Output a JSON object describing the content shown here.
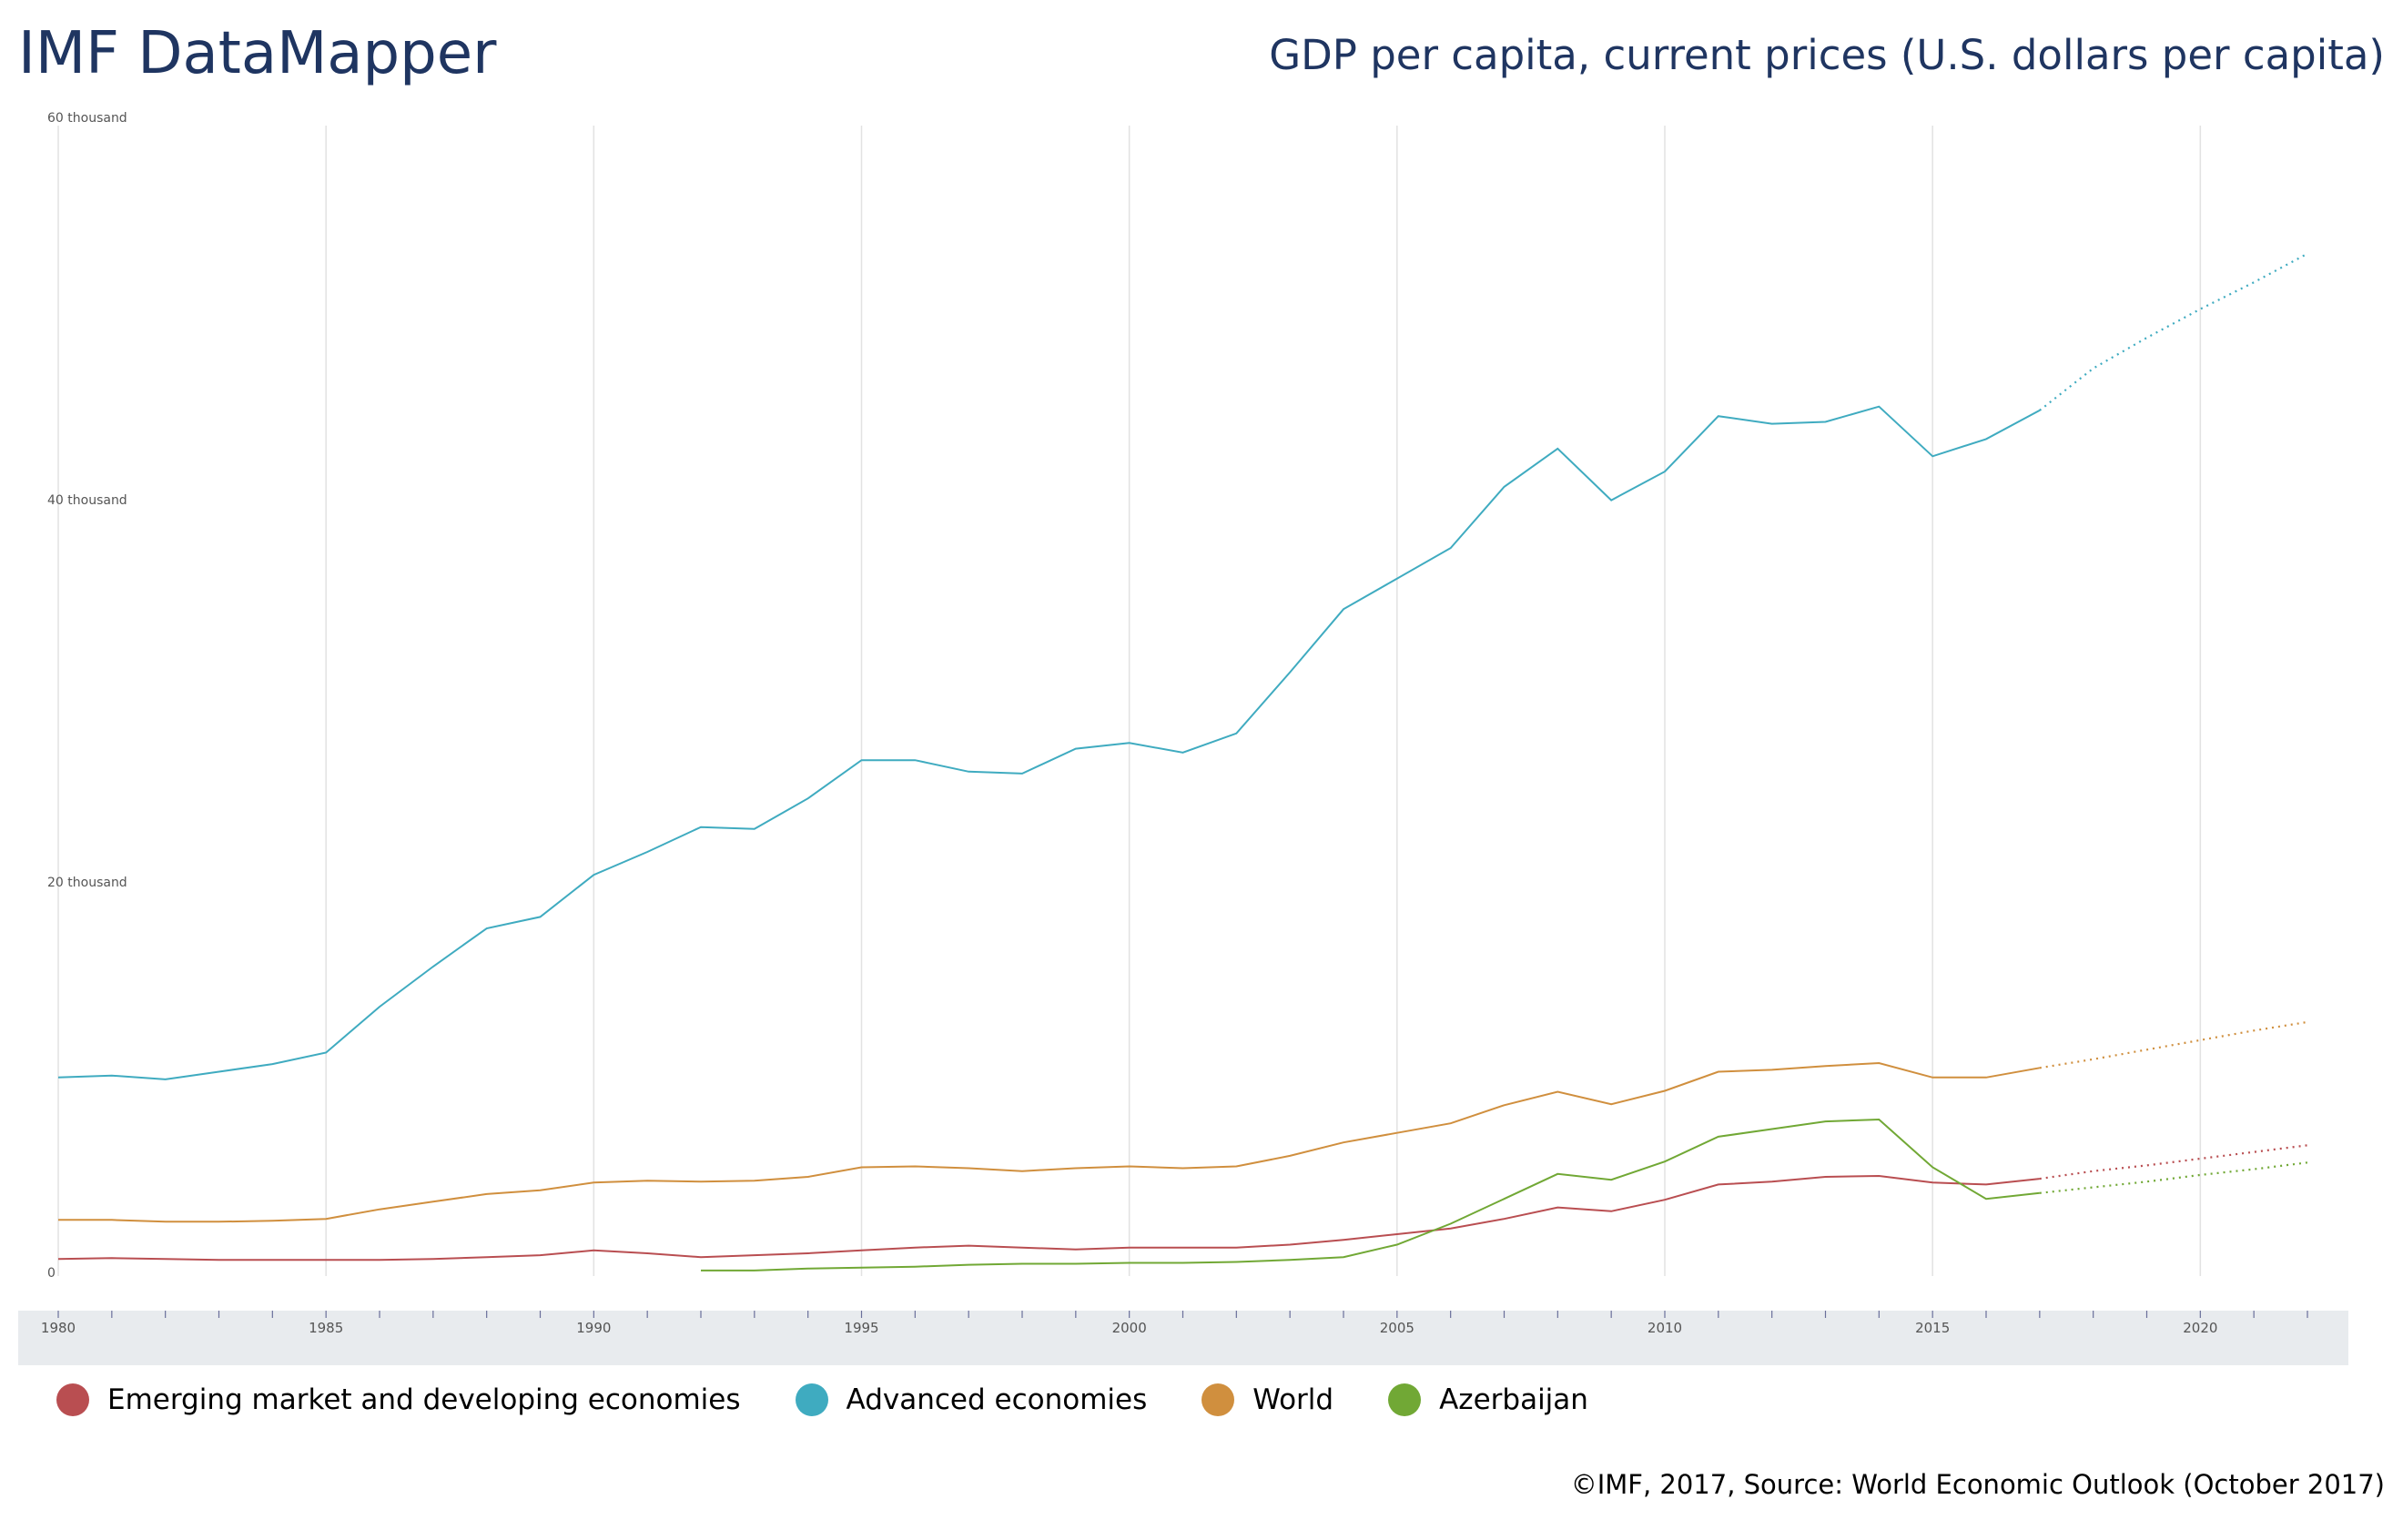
{
  "header": {
    "title": "IMF DataMapper",
    "subtitle": "GDP per capita, current prices (U.S. dollars per capita)"
  },
  "footer": {
    "source": "©IMF, 2017, Source: World Economic Outlook (October 2017)"
  },
  "chart_data": {
    "type": "line",
    "title": "GDP per capita, current prices (U.S. dollars per capita)",
    "xlim": [
      1980,
      2022
    ],
    "ylim": [
      0,
      60000
    ],
    "yticks": [
      {
        "value": 0,
        "label": "0"
      },
      {
        "value": 20000,
        "label": "20 thousand"
      },
      {
        "value": 40000,
        "label": "40 thousand"
      },
      {
        "value": 60000,
        "label": "60 thousand"
      }
    ],
    "xticks": [
      1980,
      1985,
      1990,
      1995,
      2000,
      2005,
      2010,
      2015,
      2020
    ],
    "grid": "vertical every 5 years",
    "forecast_from": 2017,
    "forecast_style": "dotted",
    "legend_position": "bottom",
    "series": [
      {
        "name": "Emerging market and developing economies",
        "color": "#b94e51",
        "start": 1980,
        "values": [
          700,
          750,
          700,
          650,
          650,
          650,
          650,
          700,
          800,
          900,
          1150,
          1000,
          800,
          900,
          1000,
          1150,
          1300,
          1400,
          1300,
          1200,
          1300,
          1300,
          1300,
          1450,
          1700,
          2000,
          2300,
          2800,
          3400,
          3200,
          3800,
          4600,
          4750,
          5000,
          5050,
          4700,
          4600,
          4900,
          5300,
          5600,
          5950,
          6300,
          6650
        ]
      },
      {
        "name": "Advanced economies",
        "color": "#3fabc0",
        "start": 1980,
        "values": [
          10200,
          10300,
          10100,
          10500,
          10900,
          11500,
          13900,
          16000,
          18000,
          18600,
          20800,
          22000,
          23300,
          23200,
          24800,
          26800,
          26800,
          26200,
          26100,
          27400,
          27700,
          27200,
          28200,
          31400,
          34700,
          36300,
          37900,
          41100,
          43100,
          40400,
          41900,
          44800,
          44400,
          44500,
          45300,
          42700,
          43600,
          45100,
          47300,
          48900,
          50400,
          51800,
          53300
        ]
      },
      {
        "name": "World",
        "color": "#d08f3e",
        "start": 1980,
        "values": [
          2750,
          2750,
          2650,
          2650,
          2700,
          2800,
          3300,
          3700,
          4100,
          4300,
          4700,
          4800,
          4750,
          4800,
          5000,
          5500,
          5550,
          5450,
          5300,
          5450,
          5550,
          5450,
          5550,
          6100,
          6800,
          7300,
          7800,
          8750,
          9450,
          8800,
          9500,
          10500,
          10600,
          10800,
          10950,
          10200,
          10200,
          10700,
          11150,
          11650,
          12150,
          12650,
          13100
        ]
      },
      {
        "name": "Azerbaijan",
        "color": "#71a835",
        "start": 1992,
        "values": [
          100,
          100,
          200,
          250,
          300,
          400,
          450,
          450,
          500,
          500,
          550,
          650,
          800,
          1450,
          2550,
          3850,
          5150,
          4850,
          5800,
          7100,
          7500,
          7900,
          8000,
          5500,
          3850,
          4150,
          4450,
          4750,
          5100,
          5400,
          5750
        ]
      }
    ]
  }
}
